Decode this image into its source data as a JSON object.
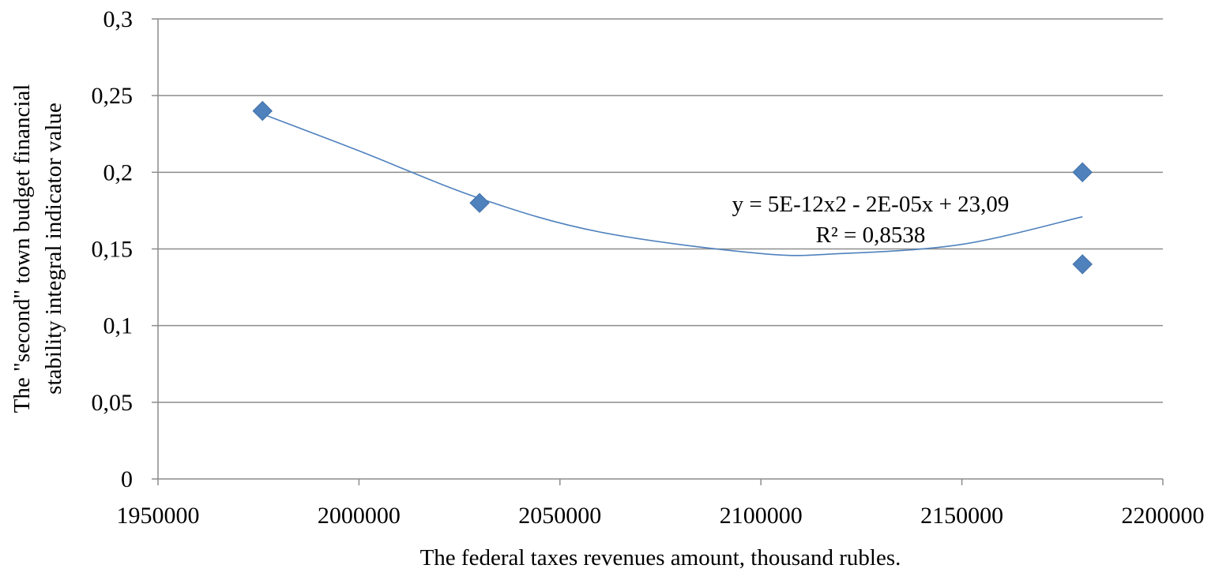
{
  "chart_data": {
    "type": "scatter",
    "title": "",
    "xlabel": "The federal taxes revenues amount, thousand rubles.",
    "ylabel_lines": [
      "The \"second\" town budget financial",
      "stability integral indicator value"
    ],
    "xlim": [
      1950000,
      2200000
    ],
    "ylim": [
      0,
      0.3
    ],
    "x_ticks": [
      {
        "value": 1950000,
        "label": "1950000"
      },
      {
        "value": 2000000,
        "label": "2000000"
      },
      {
        "value": 2050000,
        "label": "2050000"
      },
      {
        "value": 2100000,
        "label": "2100000"
      },
      {
        "value": 2150000,
        "label": "2150000"
      },
      {
        "value": 2200000,
        "label": "2200000"
      }
    ],
    "y_ticks": [
      {
        "value": 0,
        "label": "0"
      },
      {
        "value": 0.05,
        "label": "0,05"
      },
      {
        "value": 0.1,
        "label": "0,1"
      },
      {
        "value": 0.15,
        "label": "0,15"
      },
      {
        "value": 0.2,
        "label": "0,2"
      },
      {
        "value": 0.25,
        "label": "0,25"
      },
      {
        "value": 0.3,
        "label": "0,3"
      }
    ],
    "grid": "horizontal",
    "series": [
      {
        "marker": "diamond",
        "color": "#4f81bd",
        "points": [
          {
            "x": 1976000,
            "y": 0.24
          },
          {
            "x": 2030000,
            "y": 0.18
          },
          {
            "x": 2180000,
            "y": 0.2
          },
          {
            "x": 2180000,
            "y": 0.14
          }
        ]
      }
    ],
    "trendline": {
      "type": "polynomial",
      "order": 2,
      "color": "#4f81bd",
      "x_range": [
        1976000,
        2180000
      ],
      "curve": [
        {
          "x": 1976000,
          "y": 0.238
        },
        {
          "x": 2000000,
          "y": 0.214
        },
        {
          "x": 2030000,
          "y": 0.183
        },
        {
          "x": 2060000,
          "y": 0.161
        },
        {
          "x": 2100000,
          "y": 0.147
        },
        {
          "x": 2120000,
          "y": 0.147
        },
        {
          "x": 2150000,
          "y": 0.153
        },
        {
          "x": 2180000,
          "y": 0.171
        }
      ],
      "equation_label": "y = 5E-12x2 - 2E-05x + 23,09",
      "r2_label": "R² = 0,8538"
    }
  }
}
